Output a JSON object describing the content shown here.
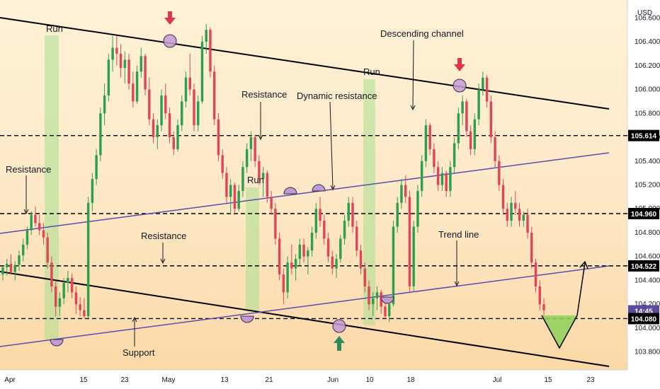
{
  "chart_data": {
    "type": "candlestick",
    "currency": "USD",
    "y_axis": {
      "min": 103.65,
      "max": 106.75,
      "ticks": [
        "103.800",
        "104.000",
        "104.200",
        "104.400",
        "104.600",
        "104.800",
        "105.000",
        "105.200",
        "105.400",
        "105.600",
        "105.800",
        "106.000",
        "106.200",
        "106.400",
        "106.600"
      ]
    },
    "x_ticks": [
      "Apr",
      "15",
      "23",
      "May",
      "13",
      "21",
      "Jun",
      "10",
      "18",
      "Jul",
      "15",
      "23"
    ],
    "price_levels": [
      {
        "label": "105.614",
        "value": 105.614,
        "style": "black"
      },
      {
        "label": "104.960",
        "value": 104.96,
        "style": "black"
      },
      {
        "label": "104.522",
        "value": 104.522,
        "style": "black"
      },
      {
        "label": "14:45",
        "value": 104.145,
        "style": "purple"
      },
      {
        "label": "104.080",
        "value": 104.08,
        "style": "black"
      }
    ],
    "dashed_levels": [
      105.614,
      104.96,
      104.522,
      104.08
    ],
    "candles": [
      [
        104.45,
        104.52,
        104.4,
        104.51
      ],
      [
        104.51,
        104.58,
        104.44,
        104.54
      ],
      [
        104.54,
        104.62,
        104.45,
        104.47
      ],
      [
        104.47,
        104.56,
        104.4,
        104.53
      ],
      [
        104.53,
        104.65,
        104.48,
        104.61
      ],
      [
        104.61,
        104.75,
        104.56,
        104.7
      ],
      [
        104.7,
        104.85,
        104.66,
        104.82
      ],
      [
        104.82,
        104.98,
        104.78,
        104.95
      ],
      [
        104.95,
        105.02,
        104.85,
        104.88
      ],
      [
        104.88,
        104.95,
        104.78,
        104.82
      ],
      [
        104.82,
        104.88,
        104.7,
        104.76
      ],
      [
        104.76,
        104.8,
        104.5,
        104.55
      ],
      [
        104.55,
        104.6,
        104.3,
        104.35
      ],
      [
        104.35,
        104.4,
        104.1,
        104.18
      ],
      [
        104.18,
        104.3,
        104.1,
        104.25
      ],
      [
        104.25,
        104.42,
        104.2,
        104.38
      ],
      [
        104.38,
        104.48,
        104.3,
        104.42
      ],
      [
        104.42,
        104.46,
        104.25,
        104.3
      ],
      [
        104.3,
        104.35,
        104.12,
        104.2
      ],
      [
        104.2,
        104.26,
        104.1,
        104.15
      ],
      [
        104.15,
        104.25,
        104.08,
        104.1
      ],
      [
        104.1,
        105.1,
        104.08,
        105.05
      ],
      [
        105.05,
        105.3,
        104.98,
        105.25
      ],
      [
        105.25,
        105.5,
        105.2,
        105.45
      ],
      [
        105.45,
        105.85,
        105.4,
        105.8
      ],
      [
        105.8,
        106.05,
        105.7,
        105.95
      ],
      [
        105.95,
        106.3,
        105.9,
        106.25
      ],
      [
        106.25,
        106.45,
        106.15,
        106.35
      ],
      [
        106.35,
        106.45,
        106.2,
        106.3
      ],
      [
        106.3,
        106.38,
        106.1,
        106.18
      ],
      [
        106.18,
        106.32,
        106.05,
        106.25
      ],
      [
        106.25,
        106.3,
        106.0,
        106.05
      ],
      [
        106.05,
        106.15,
        105.85,
        105.9
      ],
      [
        105.9,
        106.2,
        105.88,
        106.15
      ],
      [
        106.15,
        106.35,
        106.1,
        106.28
      ],
      [
        106.28,
        106.3,
        105.95,
        106.0
      ],
      [
        106.0,
        106.1,
        105.7,
        105.75
      ],
      [
        105.75,
        105.8,
        105.55,
        105.6
      ],
      [
        105.6,
        105.75,
        105.5,
        105.7
      ],
      [
        105.7,
        106.0,
        105.65,
        105.95
      ],
      [
        105.95,
        106.05,
        105.75,
        105.8
      ],
      [
        105.8,
        105.85,
        105.55,
        105.6
      ],
      [
        105.6,
        105.65,
        105.45,
        105.5
      ],
      [
        105.5,
        105.75,
        105.48,
        105.7
      ],
      [
        105.7,
        105.95,
        105.65,
        105.9
      ],
      [
        105.9,
        106.15,
        105.85,
        106.1
      ],
      [
        106.1,
        106.3,
        105.95,
        106.0
      ],
      [
        106.0,
        106.05,
        105.65,
        105.7
      ],
      [
        105.7,
        105.95,
        105.65,
        105.9
      ],
      [
        105.9,
        106.45,
        105.88,
        106.4
      ],
      [
        106.4,
        106.55,
        106.3,
        106.5
      ],
      [
        106.5,
        106.52,
        106.1,
        106.15
      ],
      [
        106.15,
        106.2,
        105.7,
        105.75
      ],
      [
        105.75,
        105.8,
        105.4,
        105.45
      ],
      [
        105.45,
        105.5,
        105.25,
        105.3
      ],
      [
        105.3,
        105.35,
        105.05,
        105.1
      ],
      [
        105.1,
        105.25,
        104.95,
        105.2
      ],
      [
        105.2,
        105.22,
        104.95,
        105.0
      ],
      [
        105.0,
        105.2,
        104.98,
        105.15
      ],
      [
        105.15,
        105.4,
        105.1,
        105.35
      ],
      [
        105.35,
        105.55,
        105.3,
        105.5
      ],
      [
        105.5,
        105.65,
        105.4,
        105.6
      ],
      [
        105.6,
        105.62,
        105.35,
        105.4
      ],
      [
        105.4,
        105.45,
        105.2,
        105.25
      ],
      [
        105.25,
        105.35,
        105.1,
        105.3
      ],
      [
        105.3,
        105.32,
        105.05,
        105.1
      ],
      [
        105.1,
        105.15,
        104.95,
        105.0
      ],
      [
        105.0,
        105.05,
        104.7,
        104.75
      ],
      [
        104.75,
        104.8,
        104.4,
        104.45
      ],
      [
        104.45,
        104.5,
        104.2,
        104.3
      ],
      [
        104.3,
        104.6,
        104.25,
        104.55
      ],
      [
        104.55,
        104.7,
        104.45,
        104.5
      ],
      [
        104.5,
        104.62,
        104.4,
        104.58
      ],
      [
        104.58,
        104.75,
        104.52,
        104.7
      ],
      [
        104.7,
        104.75,
        104.55,
        104.6
      ],
      [
        104.6,
        104.68,
        104.45,
        104.65
      ],
      [
        104.65,
        104.85,
        104.6,
        104.8
      ],
      [
        104.8,
        105.05,
        104.75,
        105.0
      ],
      [
        105.0,
        105.1,
        104.85,
        104.9
      ],
      [
        104.9,
        104.95,
        104.7,
        104.75
      ],
      [
        104.75,
        104.8,
        104.55,
        104.6
      ],
      [
        104.6,
        104.65,
        104.45,
        104.5
      ],
      [
        104.5,
        104.62,
        104.42,
        104.58
      ],
      [
        104.58,
        104.78,
        104.55,
        104.75
      ],
      [
        104.75,
        104.95,
        104.7,
        104.9
      ],
      [
        104.9,
        105.1,
        104.85,
        105.05
      ],
      [
        105.05,
        105.1,
        104.8,
        104.85
      ],
      [
        104.85,
        104.9,
        104.6,
        104.65
      ],
      [
        104.65,
        104.7,
        104.45,
        104.5
      ],
      [
        104.5,
        104.55,
        104.3,
        104.35
      ],
      [
        104.35,
        104.4,
        104.15,
        104.2
      ],
      [
        104.2,
        104.3,
        104.1,
        104.25
      ],
      [
        104.25,
        104.35,
        104.15,
        104.3
      ],
      [
        104.3,
        104.32,
        104.12,
        104.18
      ],
      [
        104.18,
        104.25,
        104.08,
        104.1
      ],
      [
        104.1,
        104.22,
        104.05,
        104.2
      ],
      [
        104.2,
        104.9,
        104.18,
        104.85
      ],
      [
        104.85,
        105.1,
        104.8,
        105.05
      ],
      [
        105.05,
        105.25,
        105.0,
        105.2
      ],
      [
        105.2,
        105.28,
        105.05,
        105.1
      ],
      [
        105.1,
        105.15,
        104.3,
        104.35
      ],
      [
        104.35,
        104.9,
        104.3,
        104.85
      ],
      [
        104.85,
        105.2,
        104.8,
        105.15
      ],
      [
        105.15,
        105.45,
        105.1,
        105.4
      ],
      [
        105.4,
        105.75,
        105.35,
        105.7
      ],
      [
        105.7,
        105.72,
        105.45,
        105.5
      ],
      [
        105.5,
        105.55,
        105.3,
        105.35
      ],
      [
        105.35,
        105.4,
        105.15,
        105.2
      ],
      [
        105.2,
        105.35,
        105.15,
        105.3
      ],
      [
        105.3,
        105.32,
        105.1,
        105.15
      ],
      [
        105.15,
        105.4,
        105.1,
        105.35
      ],
      [
        105.35,
        105.6,
        105.3,
        105.55
      ],
      [
        105.55,
        105.85,
        105.5,
        105.8
      ],
      [
        105.8,
        105.95,
        105.7,
        105.9
      ],
      [
        105.9,
        105.92,
        105.6,
        105.65
      ],
      [
        105.65,
        105.7,
        105.45,
        105.5
      ],
      [
        105.5,
        105.8,
        105.45,
        105.75
      ],
      [
        105.75,
        106.05,
        105.7,
        106.0
      ],
      [
        106.0,
        106.15,
        105.95,
        106.1
      ],
      [
        106.1,
        106.12,
        105.85,
        105.9
      ],
      [
        105.9,
        105.95,
        105.55,
        105.6
      ],
      [
        105.6,
        105.65,
        105.35,
        105.4
      ],
      [
        105.4,
        105.45,
        105.15,
        105.2
      ],
      [
        105.2,
        105.25,
        104.95,
        105.0
      ],
      [
        105.0,
        105.05,
        104.85,
        104.9
      ],
      [
        104.9,
        105.1,
        104.85,
        105.05
      ],
      [
        105.05,
        105.15,
        104.95,
        105.0
      ],
      [
        105.0,
        105.05,
        104.85,
        104.9
      ],
      [
        104.9,
        104.98,
        104.85,
        104.95
      ],
      [
        104.95,
        105.0,
        104.75,
        104.8
      ],
      [
        104.8,
        104.85,
        104.5,
        104.55
      ],
      [
        104.55,
        104.58,
        104.3,
        104.35
      ],
      [
        104.35,
        104.4,
        104.15,
        104.2
      ],
      [
        104.2,
        104.25,
        104.1,
        104.15
      ]
    ]
  },
  "annotations": [
    {
      "text": "Run",
      "role": "run-label-1"
    },
    {
      "text": "Run",
      "role": "run-label-2"
    },
    {
      "text": "Run",
      "role": "run-label-3"
    },
    {
      "text": "Resistance",
      "role": "resistance-left"
    },
    {
      "text": "Resistance",
      "role": "resistance-upper"
    },
    {
      "text": "Resistance",
      "role": "resistance-middle"
    },
    {
      "text": "Dynamic resistance",
      "role": "dynamic-resistance"
    },
    {
      "text": "Descending channel",
      "role": "descending-channel"
    },
    {
      "text": "Trend line",
      "role": "trend-line"
    },
    {
      "text": "Support",
      "role": "support"
    }
  ],
  "colors": {
    "bull": "#2e9e4f",
    "bear": "#e0465a",
    "run_zone": "#a8e08f",
    "touch_marker": "#c39bd3",
    "trend_line": "#6a5acd",
    "arrow_down": "#e0344a",
    "arrow_up": "#2e8b57",
    "projection_fill": "#8fd15b",
    "price_tag_purple": "#5e4a9c"
  }
}
